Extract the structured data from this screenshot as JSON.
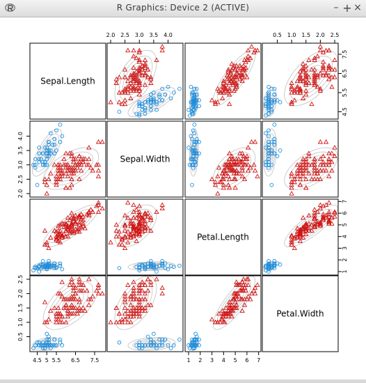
{
  "window": {
    "title": "R Graphics: Device 2 (ACTIVE)",
    "app_icon": "r-logo-icon",
    "buttons": {
      "minimize": "–",
      "maximize": "+",
      "close": "×"
    }
  },
  "colors": {
    "species_a": "#1a8ee0",
    "species_b": "#d01414",
    "contour": "#aaaaaa",
    "frame": "#000000"
  },
  "chart_data": {
    "type": "scatter",
    "matrix": true,
    "grid": false,
    "legend": "none",
    "variables": [
      "Sepal.Length",
      "Sepal.Width",
      "Petal.Length",
      "Petal.Width"
    ],
    "ranges": [
      [
        4.3,
        7.9
      ],
      [
        2.0,
        4.4
      ],
      [
        1.0,
        6.9
      ],
      [
        0.1,
        2.5
      ]
    ],
    "ticks": {
      "Sepal.Length": {
        "values": [
          4.5,
          5.5,
          6.5,
          7.5
        ],
        "labels": [
          "4.5",
          "5.5",
          "6.5",
          "7.5"
        ],
        "side": "right"
      },
      "Sepal.Length_bottom": {
        "values": [
          4.5,
          5.0,
          5.5,
          6.5,
          7.5
        ],
        "labels": [
          "4.5",
          "5",
          "5.5",
          "6.5",
          "7.5"
        ],
        "side": "bottom"
      },
      "Sepal.Width": {
        "values": [
          2.0,
          2.5,
          3.0,
          3.5,
          4.0
        ],
        "labels": [
          "2.0",
          "2.5",
          "3.0",
          "3.5",
          "4.0"
        ],
        "side": "top-left"
      },
      "Petal.Length": {
        "values": [
          1,
          2,
          3,
          4,
          5,
          6,
          7
        ],
        "labels": [
          "1",
          "2",
          "3",
          "4",
          "5",
          "6",
          "7"
        ],
        "side": "bottom-right"
      },
      "Petal.Width": {
        "values": [
          0.5,
          1.0,
          1.5,
          2.0,
          2.5
        ],
        "labels": [
          "0.5",
          "1.0",
          "1.5",
          "2.0",
          "2.5"
        ],
        "side": "top-left"
      }
    },
    "series": [
      {
        "marker": "circle",
        "color": "#1a8ee0",
        "points": [
          [
            5.1,
            3.5,
            1.4,
            0.2
          ],
          [
            4.9,
            3.0,
            1.4,
            0.2
          ],
          [
            4.7,
            3.2,
            1.3,
            0.2
          ],
          [
            4.6,
            3.1,
            1.5,
            0.2
          ],
          [
            5.0,
            3.6,
            1.4,
            0.2
          ],
          [
            5.4,
            3.9,
            1.7,
            0.4
          ],
          [
            4.6,
            3.4,
            1.4,
            0.3
          ],
          [
            5.0,
            3.4,
            1.5,
            0.2
          ],
          [
            4.4,
            2.9,
            1.4,
            0.2
          ],
          [
            4.9,
            3.1,
            1.5,
            0.1
          ],
          [
            5.4,
            3.7,
            1.5,
            0.2
          ],
          [
            4.8,
            3.4,
            1.6,
            0.2
          ],
          [
            4.8,
            3.0,
            1.4,
            0.1
          ],
          [
            4.3,
            3.0,
            1.1,
            0.1
          ],
          [
            5.8,
            4.0,
            1.2,
            0.2
          ],
          [
            5.7,
            4.4,
            1.5,
            0.4
          ],
          [
            5.4,
            3.9,
            1.3,
            0.4
          ],
          [
            5.1,
            3.5,
            1.4,
            0.3
          ],
          [
            5.7,
            3.8,
            1.7,
            0.3
          ],
          [
            5.1,
            3.8,
            1.5,
            0.3
          ],
          [
            5.4,
            3.4,
            1.7,
            0.2
          ],
          [
            5.1,
            3.7,
            1.5,
            0.4
          ],
          [
            4.6,
            3.6,
            1.0,
            0.2
          ],
          [
            5.1,
            3.3,
            1.7,
            0.5
          ],
          [
            4.8,
            3.4,
            1.9,
            0.2
          ],
          [
            5.0,
            3.0,
            1.6,
            0.2
          ],
          [
            5.0,
            3.4,
            1.6,
            0.4
          ],
          [
            5.2,
            3.5,
            1.5,
            0.2
          ],
          [
            5.2,
            3.4,
            1.4,
            0.2
          ],
          [
            4.7,
            3.2,
            1.6,
            0.2
          ],
          [
            4.8,
            3.1,
            1.6,
            0.2
          ],
          [
            5.4,
            3.4,
            1.5,
            0.4
          ],
          [
            5.2,
            4.1,
            1.5,
            0.1
          ],
          [
            5.5,
            4.2,
            1.4,
            0.2
          ],
          [
            4.9,
            3.1,
            1.5,
            0.2
          ],
          [
            5.0,
            3.2,
            1.2,
            0.2
          ],
          [
            5.5,
            3.5,
            1.3,
            0.2
          ],
          [
            4.9,
            3.6,
            1.4,
            0.1
          ],
          [
            4.4,
            3.0,
            1.3,
            0.2
          ],
          [
            5.1,
            3.4,
            1.5,
            0.2
          ],
          [
            5.0,
            3.5,
            1.3,
            0.3
          ],
          [
            4.5,
            2.3,
            1.3,
            0.3
          ],
          [
            4.4,
            3.2,
            1.3,
            0.2
          ],
          [
            5.0,
            3.5,
            1.6,
            0.6
          ],
          [
            5.1,
            3.8,
            1.9,
            0.4
          ],
          [
            4.8,
            3.0,
            1.4,
            0.3
          ],
          [
            5.1,
            3.8,
            1.6,
            0.2
          ],
          [
            4.6,
            3.2,
            1.4,
            0.2
          ],
          [
            5.3,
            3.7,
            1.5,
            0.2
          ],
          [
            5.0,
            3.3,
            1.4,
            0.2
          ]
        ]
      },
      {
        "marker": "triangle",
        "color": "#d01414",
        "points": [
          [
            7.0,
            3.2,
            4.7,
            1.4
          ],
          [
            6.4,
            3.2,
            4.5,
            1.5
          ],
          [
            6.9,
            3.1,
            4.9,
            1.5
          ],
          [
            5.5,
            2.3,
            4.0,
            1.3
          ],
          [
            6.5,
            2.8,
            4.6,
            1.5
          ],
          [
            5.7,
            2.8,
            4.5,
            1.3
          ],
          [
            6.3,
            3.3,
            4.7,
            1.6
          ],
          [
            4.9,
            2.4,
            3.3,
            1.0
          ],
          [
            6.6,
            2.9,
            4.6,
            1.3
          ],
          [
            5.2,
            2.7,
            3.9,
            1.4
          ],
          [
            5.0,
            2.0,
            3.5,
            1.0
          ],
          [
            5.9,
            3.0,
            4.2,
            1.5
          ],
          [
            6.0,
            2.2,
            4.0,
            1.0
          ],
          [
            6.1,
            2.9,
            4.7,
            1.4
          ],
          [
            5.6,
            2.9,
            3.6,
            1.3
          ],
          [
            6.7,
            3.1,
            4.4,
            1.4
          ],
          [
            5.6,
            3.0,
            4.5,
            1.5
          ],
          [
            5.8,
            2.7,
            4.1,
            1.0
          ],
          [
            6.2,
            2.2,
            4.5,
            1.5
          ],
          [
            5.6,
            2.5,
            3.9,
            1.1
          ],
          [
            5.9,
            3.2,
            4.8,
            1.8
          ],
          [
            6.1,
            2.8,
            4.0,
            1.3
          ],
          [
            6.3,
            2.5,
            4.9,
            1.5
          ],
          [
            6.1,
            2.8,
            4.7,
            1.2
          ],
          [
            6.4,
            2.9,
            4.3,
            1.3
          ],
          [
            6.6,
            3.0,
            4.4,
            1.4
          ],
          [
            6.8,
            2.8,
            4.8,
            1.4
          ],
          [
            6.7,
            3.0,
            5.0,
            1.7
          ],
          [
            6.0,
            2.9,
            4.5,
            1.5
          ],
          [
            5.7,
            2.6,
            3.5,
            1.0
          ],
          [
            5.5,
            2.4,
            3.8,
            1.1
          ],
          [
            5.5,
            2.4,
            3.7,
            1.0
          ],
          [
            5.8,
            2.7,
            3.9,
            1.2
          ],
          [
            6.0,
            2.7,
            5.1,
            1.6
          ],
          [
            5.4,
            3.0,
            4.5,
            1.5
          ],
          [
            6.0,
            3.4,
            4.5,
            1.6
          ],
          [
            6.7,
            3.1,
            4.7,
            1.5
          ],
          [
            6.3,
            2.3,
            4.4,
            1.3
          ],
          [
            5.6,
            3.0,
            4.1,
            1.3
          ],
          [
            5.5,
            2.5,
            4.0,
            1.3
          ],
          [
            5.5,
            2.6,
            4.4,
            1.2
          ],
          [
            6.1,
            3.0,
            4.6,
            1.4
          ],
          [
            5.8,
            2.6,
            4.0,
            1.2
          ],
          [
            5.0,
            2.3,
            3.3,
            1.0
          ],
          [
            5.6,
            2.7,
            4.2,
            1.3
          ],
          [
            5.7,
            3.0,
            4.2,
            1.2
          ],
          [
            5.7,
            2.9,
            4.2,
            1.3
          ],
          [
            6.2,
            2.9,
            4.3,
            1.3
          ],
          [
            5.1,
            2.5,
            3.0,
            1.1
          ],
          [
            5.7,
            2.8,
            4.1,
            1.3
          ],
          [
            6.3,
            3.3,
            6.0,
            2.5
          ],
          [
            5.8,
            2.7,
            5.1,
            1.9
          ],
          [
            7.1,
            3.0,
            5.9,
            2.1
          ],
          [
            6.3,
            2.9,
            5.6,
            1.8
          ],
          [
            6.5,
            3.0,
            5.8,
            2.2
          ],
          [
            7.6,
            3.0,
            6.6,
            2.1
          ],
          [
            4.9,
            2.5,
            4.5,
            1.7
          ],
          [
            7.3,
            2.9,
            6.3,
            1.8
          ],
          [
            6.7,
            2.5,
            5.8,
            1.8
          ],
          [
            7.2,
            3.6,
            6.1,
            2.5
          ],
          [
            6.5,
            3.2,
            5.1,
            2.0
          ],
          [
            6.4,
            2.7,
            5.3,
            1.9
          ],
          [
            6.8,
            3.0,
            5.5,
            2.1
          ],
          [
            5.7,
            2.5,
            5.0,
            2.0
          ],
          [
            5.8,
            2.8,
            5.1,
            2.4
          ],
          [
            6.4,
            3.2,
            5.3,
            2.3
          ],
          [
            6.5,
            3.0,
            5.5,
            1.8
          ],
          [
            7.7,
            3.8,
            6.7,
            2.2
          ],
          [
            7.7,
            2.6,
            6.9,
            2.3
          ],
          [
            6.0,
            2.2,
            5.0,
            1.5
          ],
          [
            6.9,
            3.2,
            5.7,
            2.3
          ],
          [
            5.6,
            2.8,
            4.9,
            2.0
          ],
          [
            7.7,
            2.8,
            6.7,
            2.0
          ],
          [
            6.3,
            2.7,
            4.9,
            1.8
          ],
          [
            6.7,
            3.3,
            5.7,
            2.1
          ],
          [
            7.2,
            3.2,
            6.0,
            1.8
          ],
          [
            6.2,
            2.8,
            4.8,
            1.8
          ],
          [
            6.1,
            3.0,
            4.9,
            1.8
          ],
          [
            6.4,
            2.8,
            5.6,
            2.1
          ],
          [
            7.2,
            3.0,
            5.8,
            1.6
          ],
          [
            7.4,
            2.8,
            6.1,
            1.9
          ],
          [
            7.9,
            3.8,
            6.4,
            2.0
          ],
          [
            6.4,
            2.8,
            5.6,
            2.2
          ],
          [
            6.3,
            2.8,
            5.1,
            1.5
          ],
          [
            6.1,
            2.6,
            5.6,
            1.4
          ],
          [
            7.7,
            3.0,
            6.1,
            2.3
          ],
          [
            6.3,
            3.4,
            5.6,
            2.4
          ],
          [
            6.4,
            3.1,
            5.5,
            1.8
          ],
          [
            6.0,
            3.0,
            4.8,
            1.8
          ],
          [
            6.9,
            3.1,
            5.4,
            2.1
          ],
          [
            6.7,
            3.1,
            5.6,
            2.4
          ],
          [
            6.9,
            3.1,
            5.1,
            2.3
          ],
          [
            5.8,
            2.7,
            5.1,
            1.9
          ],
          [
            6.8,
            3.2,
            5.9,
            2.3
          ],
          [
            6.7,
            3.3,
            5.7,
            2.5
          ],
          [
            6.7,
            3.0,
            5.2,
            2.3
          ],
          [
            6.3,
            2.5,
            5.0,
            1.9
          ],
          [
            6.5,
            3.0,
            5.2,
            2.0
          ],
          [
            6.2,
            3.4,
            5.4,
            2.3
          ],
          [
            5.9,
            3.0,
            5.1,
            1.8
          ]
        ]
      }
    ]
  }
}
